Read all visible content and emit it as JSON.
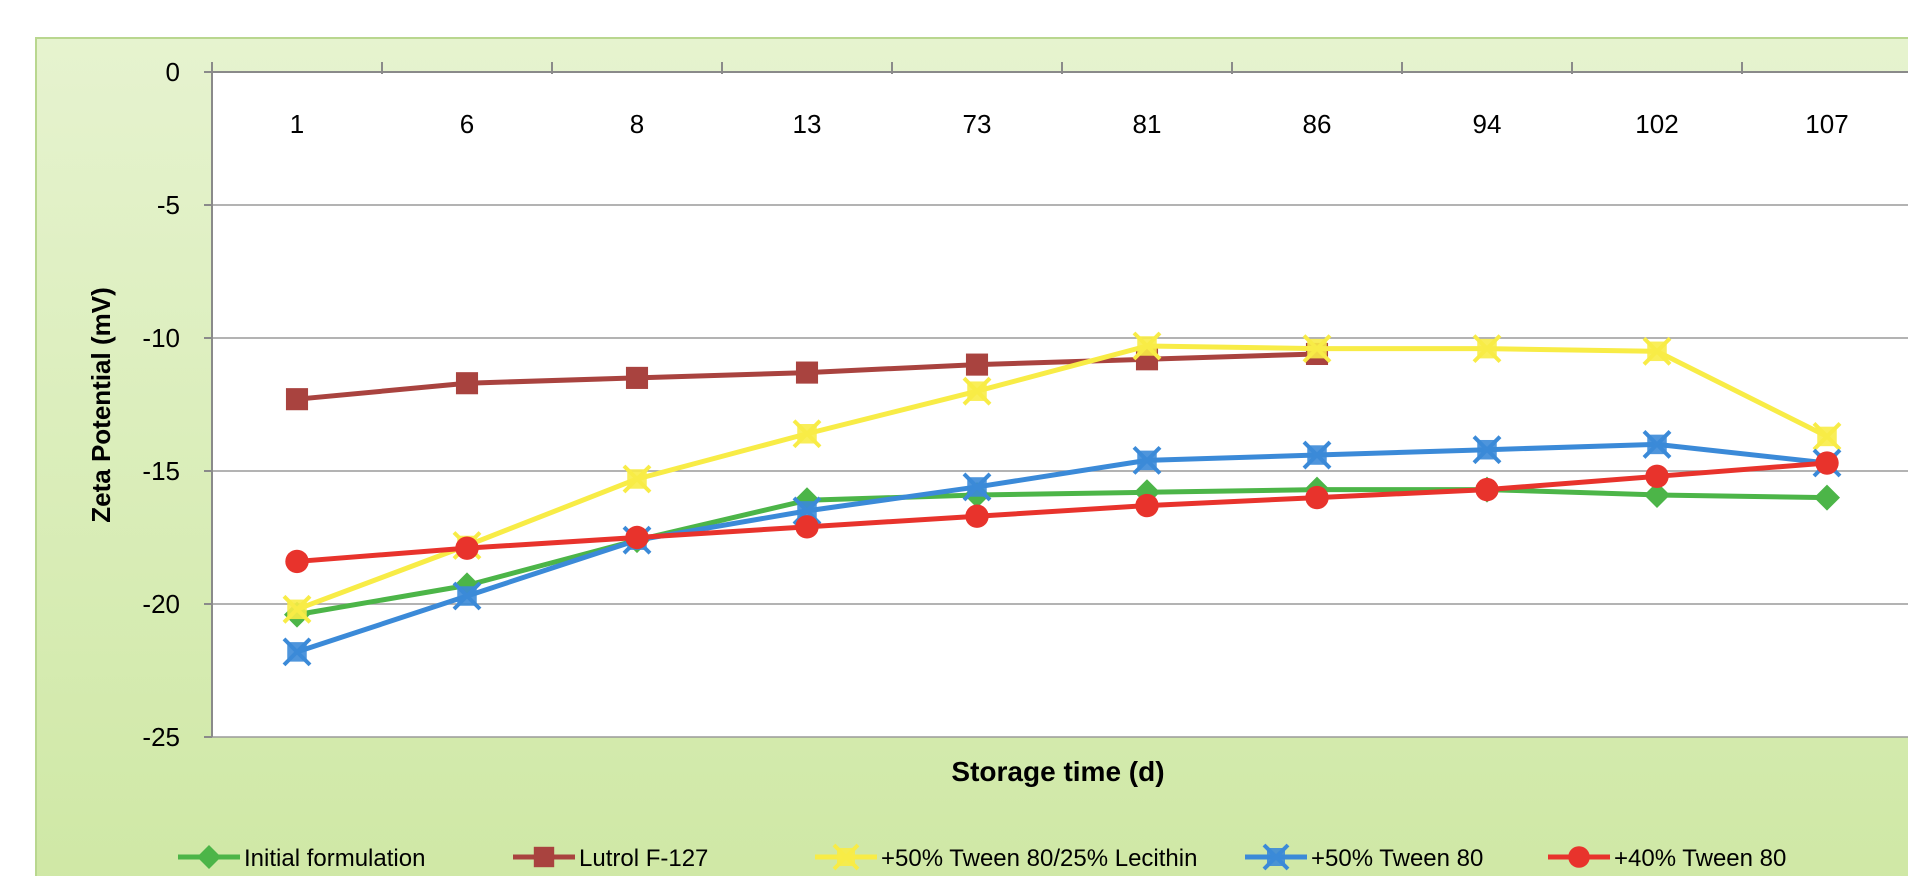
{
  "chart_data": {
    "type": "line",
    "title": "",
    "xlabel": "Storage time (d)",
    "ylabel": "Zeta Potential (mV)",
    "categories": [
      "1",
      "6",
      "8",
      "13",
      "73",
      "81",
      "86",
      "94",
      "102",
      "107"
    ],
    "ylim": [
      -25,
      0
    ],
    "yticks": [
      "0",
      "-5",
      "-10",
      "-15",
      "-20",
      "-25"
    ],
    "x_axis_position": "top",
    "grid": true,
    "legend_position": "bottom",
    "series": [
      {
        "name": "Initial formulation",
        "color": "#4CB548",
        "marker": "diamond",
        "values": [
          -20.4,
          -19.3,
          -17.6,
          -16.1,
          -15.9,
          -15.8,
          -15.7,
          -15.7,
          -15.9,
          -16.0
        ]
      },
      {
        "name": "Lutrol F-127",
        "color": "#A9433F",
        "marker": "square",
        "values": [
          -12.3,
          -11.7,
          -11.5,
          -11.3,
          -11.0,
          -10.8,
          -10.6,
          null,
          null,
          null
        ]
      },
      {
        "name": "+50% Tween 80/25% Lecithin",
        "color": "#F8EC46",
        "marker": "x",
        "values": [
          -20.2,
          -17.8,
          -15.3,
          -13.6,
          -12.0,
          -10.3,
          -10.4,
          -10.4,
          -10.5,
          -13.7
        ]
      },
      {
        "name": "+50% Tween 80",
        "color": "#3B8AD8",
        "marker": "x",
        "values": [
          -21.8,
          -19.7,
          -17.6,
          -16.5,
          -15.6,
          -14.6,
          -14.4,
          -14.2,
          -14.0,
          -14.7
        ]
      },
      {
        "name": "+40% Tween 80",
        "color": "#E8332C",
        "marker": "circle",
        "values": [
          -18.4,
          -17.9,
          -17.5,
          -17.1,
          -16.7,
          -16.3,
          -16.0,
          -15.7,
          -15.2,
          -14.7
        ]
      }
    ]
  }
}
